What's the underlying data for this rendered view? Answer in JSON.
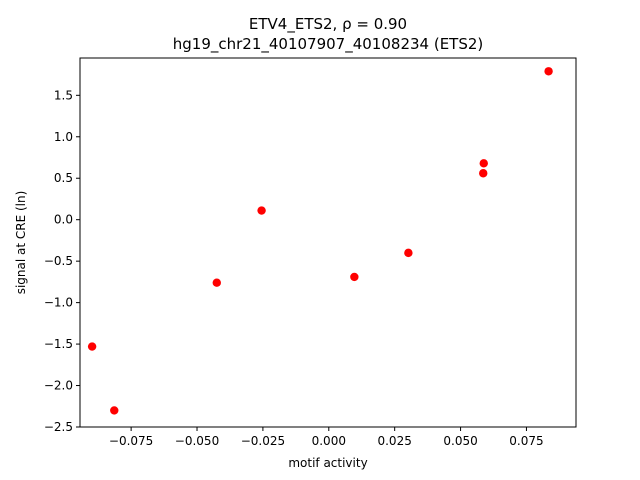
{
  "chart_data": {
    "type": "scatter",
    "title_line1": "ETV4_ETS2, ρ = 0.90",
    "title_line2": "hg19_chr21_40107907_40108234 (ETS2)",
    "xlabel": "motif activity",
    "ylabel": "signal at CRE (ln)",
    "xlim": [
      -0.0944,
      0.0938
    ],
    "ylim": [
      -2.5,
      1.95
    ],
    "x_ticks": [
      -0.075,
      -0.05,
      -0.025,
      0.0,
      0.025,
      0.05,
      0.075
    ],
    "x_tick_labels": [
      "−0.075",
      "−0.050",
      "−0.025",
      "0.000",
      "0.025",
      "0.050",
      "0.075"
    ],
    "y_ticks": [
      -2.5,
      -2.0,
      -1.5,
      -1.0,
      -0.5,
      0.0,
      0.5,
      1.0,
      1.5
    ],
    "y_tick_labels": [
      "−2.5",
      "−2.0",
      "−1.5",
      "−1.0",
      "−0.5",
      "0.0",
      "0.5",
      "1.0",
      "1.5"
    ],
    "grid": false,
    "marker_color": "#ff0000",
    "points": [
      {
        "x": -0.0898,
        "y": -1.53
      },
      {
        "x": -0.0814,
        "y": -2.3
      },
      {
        "x": -0.0425,
        "y": -0.76
      },
      {
        "x": -0.0255,
        "y": 0.11
      },
      {
        "x": 0.0097,
        "y": -0.69
      },
      {
        "x": 0.0302,
        "y": -0.4
      },
      {
        "x": 0.0586,
        "y": 0.56
      },
      {
        "x": 0.0588,
        "y": 0.68
      },
      {
        "x": 0.0834,
        "y": 1.79
      }
    ]
  }
}
